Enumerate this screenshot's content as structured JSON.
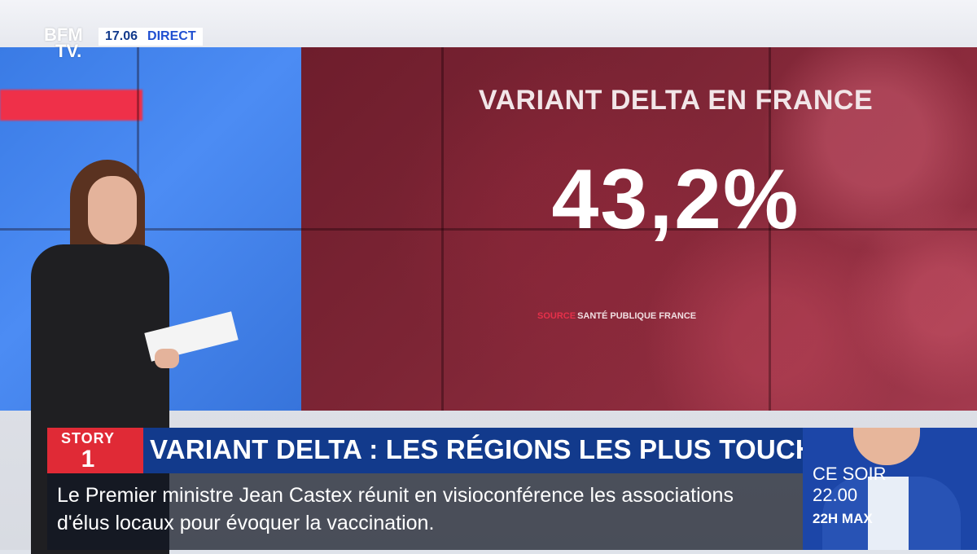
{
  "channel": {
    "logo_line1": "BFM",
    "logo_line2": "TV.",
    "time": "17.06",
    "live_label": "DIRECT"
  },
  "screen": {
    "title": "VARIANT DELTA EN FRANCE",
    "stat": "43,2%",
    "source_key": "SOURCE",
    "source_value": "SANTÉ PUBLIQUE FRANCE"
  },
  "lower_third": {
    "story_label": "STORY",
    "story_number": "1",
    "headline": "VARIANT DELTA : LES RÉGIONS LES PLUS TOUCHÉES",
    "ticker": "Le Premier ministre Jean Castex réunit en visioconférence les associations d'élus locaux pour évoquer la vaccination."
  },
  "promo": {
    "line1": "CE SOIR",
    "line2": "22.00",
    "line3": "22H MAX"
  },
  "colors": {
    "brand_blue": "#123a8c",
    "story_red": "#e02a36",
    "screen_red": "#7d2535"
  }
}
